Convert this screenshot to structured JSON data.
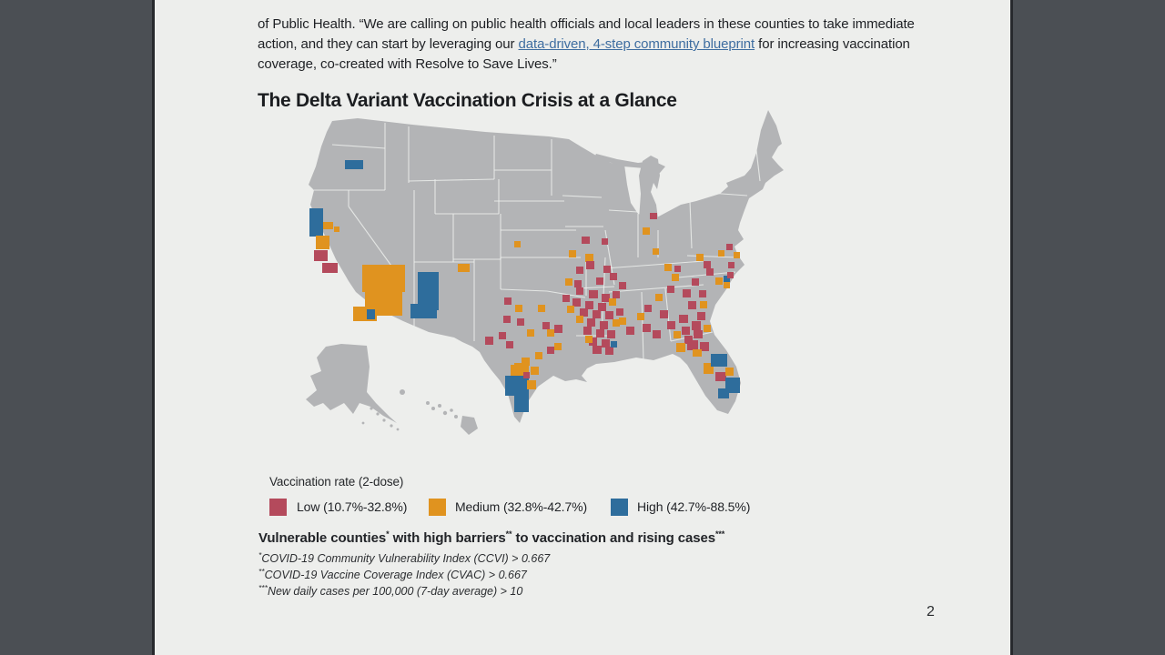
{
  "page": {
    "number": "2",
    "paragraph": {
      "before_link": "of Public Health. “We are calling on public health officials and local leaders in these counties to take immediate action, and they can start by leveraging our ",
      "link_text": "data-driven, 4-step community blueprint",
      "after_link": " for increasing vaccination coverage, co-created with Resolve to Save Lives.”"
    },
    "heading": "The Delta Variant Vaccination Crisis at a Glance"
  },
  "legend": {
    "title": "Vaccination rate (2-dose)"
  },
  "caption": {
    "title_parts": [
      "Vulnerable counties",
      "*",
      " with high barriers",
      "**",
      " to vaccination and rising cases",
      "***"
    ],
    "footnotes": [
      {
        "sup": "*",
        "text": "COVID-19 Community Vulnerability Index (CCVI) > 0.667"
      },
      {
        "sup": "**",
        "text": "COVID-19 Vaccine Coverage Index (CVAC) > 0.667"
      },
      {
        "sup": "***",
        "text": "New daily cases per 100,000 (7-day average) > 10"
      }
    ]
  },
  "chart_data": {
    "type": "choropleth-map",
    "title": "The Delta Variant Vaccination Crisis at a Glance",
    "region": "United States counties",
    "legend_title": "Vaccination rate (2-dose)",
    "legend_position": "bottom-left",
    "categories": [
      {
        "key": "L",
        "label": "Low (10.7%-32.8%)",
        "color": "#b44a5c"
      },
      {
        "key": "M",
        "label": "Medium (32.8%-42.7%)",
        "color": "#e0931f"
      },
      {
        "key": "H",
        "label": "High (42.7%-88.5%)",
        "color": "#2e6d9c"
      }
    ],
    "base_land_color": "#b3b4b6",
    "note": "Highlighted counties are vulnerable counties with high barriers to vaccination and rising cases; clusters concentrated in the South (TX, OK, AR, LA, MS, AL, GA, FL, Carolinas, MO) with scattered counties in CA, OR, AZ, NM, IN, OH",
    "counties": [
      [
        76,
        63,
        20,
        10,
        "H"
      ],
      [
        37,
        116,
        15,
        31,
        "H"
      ],
      [
        52,
        131,
        11,
        8,
        "M"
      ],
      [
        64,
        136,
        6,
        6,
        "M"
      ],
      [
        44,
        146,
        15,
        15,
        "M"
      ],
      [
        42,
        162,
        15,
        12,
        "L"
      ],
      [
        51,
        176,
        17,
        11,
        "L"
      ],
      [
        95,
        178,
        47,
        30,
        "M"
      ],
      [
        98,
        206,
        41,
        28,
        "M"
      ],
      [
        85,
        224,
        26,
        16,
        "M"
      ],
      [
        100,
        227,
        9,
        11,
        "H"
      ],
      [
        156,
        186,
        23,
        42,
        "H"
      ],
      [
        148,
        221,
        29,
        16,
        "H"
      ],
      [
        200,
        177,
        13,
        9,
        "M"
      ],
      [
        262,
        152,
        7,
        7,
        "M"
      ],
      [
        336,
        147,
        9,
        8,
        "L"
      ],
      [
        358,
        149,
        7,
        7,
        "L"
      ],
      [
        322,
        162,
        8,
        8,
        "M"
      ],
      [
        340,
        166,
        9,
        9,
        "M"
      ],
      [
        341,
        174,
        9,
        9,
        "L"
      ],
      [
        330,
        180,
        8,
        8,
        "L"
      ],
      [
        360,
        179,
        8,
        8,
        "L"
      ],
      [
        367,
        187,
        8,
        8,
        "L"
      ],
      [
        352,
        192,
        8,
        8,
        "L"
      ],
      [
        318,
        193,
        8,
        8,
        "M"
      ],
      [
        328,
        195,
        8,
        8,
        "L"
      ],
      [
        377,
        197,
        8,
        8,
        "L"
      ],
      [
        330,
        203,
        8,
        8,
        "L"
      ],
      [
        344,
        206,
        10,
        9,
        "L"
      ],
      [
        358,
        210,
        9,
        9,
        "L"
      ],
      [
        370,
        207,
        8,
        8,
        "L"
      ],
      [
        315,
        211,
        8,
        8,
        "L"
      ],
      [
        326,
        215,
        9,
        9,
        "L"
      ],
      [
        340,
        218,
        9,
        9,
        "L"
      ],
      [
        354,
        220,
        9,
        9,
        "L"
      ],
      [
        366,
        215,
        8,
        8,
        "M"
      ],
      [
        320,
        223,
        8,
        8,
        "M"
      ],
      [
        334,
        226,
        9,
        9,
        "L"
      ],
      [
        348,
        228,
        9,
        9,
        "L"
      ],
      [
        362,
        229,
        9,
        9,
        "L"
      ],
      [
        374,
        226,
        8,
        8,
        "L"
      ],
      [
        330,
        234,
        8,
        8,
        "M"
      ],
      [
        342,
        237,
        9,
        9,
        "L"
      ],
      [
        356,
        240,
        9,
        9,
        "L"
      ],
      [
        370,
        238,
        8,
        8,
        "M"
      ],
      [
        338,
        246,
        9,
        9,
        "L"
      ],
      [
        352,
        249,
        9,
        9,
        "L"
      ],
      [
        364,
        250,
        9,
        9,
        "L"
      ],
      [
        344,
        258,
        9,
        9,
        "L"
      ],
      [
        358,
        260,
        9,
        9,
        "L"
      ],
      [
        348,
        267,
        10,
        9,
        "L"
      ],
      [
        362,
        268,
        9,
        9,
        "L"
      ],
      [
        368,
        262,
        7,
        7,
        "H"
      ],
      [
        340,
        256,
        8,
        8,
        "M"
      ],
      [
        251,
        214,
        8,
        8,
        "L"
      ],
      [
        263,
        222,
        8,
        8,
        "M"
      ],
      [
        288,
        222,
        8,
        8,
        "M"
      ],
      [
        250,
        234,
        8,
        8,
        "L"
      ],
      [
        265,
        237,
        8,
        8,
        "L"
      ],
      [
        245,
        252,
        8,
        8,
        "L"
      ],
      [
        230,
        257,
        9,
        9,
        "L"
      ],
      [
        253,
        262,
        8,
        8,
        "L"
      ],
      [
        276,
        249,
        8,
        8,
        "M"
      ],
      [
        293,
        241,
        8,
        8,
        "L"
      ],
      [
        298,
        249,
        8,
        8,
        "M"
      ],
      [
        306,
        244,
        9,
        9,
        "L"
      ],
      [
        306,
        264,
        8,
        8,
        "M"
      ],
      [
        285,
        274,
        8,
        8,
        "M"
      ],
      [
        298,
        268,
        8,
        8,
        "L"
      ],
      [
        270,
        280,
        9,
        9,
        "M"
      ],
      [
        280,
        290,
        9,
        9,
        "M"
      ],
      [
        262,
        286,
        8,
        8,
        "M"
      ],
      [
        258,
        288,
        20,
        14,
        "M"
      ],
      [
        252,
        300,
        26,
        22,
        "H"
      ],
      [
        262,
        322,
        16,
        18,
        "H"
      ],
      [
        276,
        305,
        10,
        10,
        "M"
      ],
      [
        272,
        296,
        7,
        7,
        "L"
      ],
      [
        385,
        246,
        9,
        9,
        "L"
      ],
      [
        377,
        236,
        8,
        8,
        "M"
      ],
      [
        397,
        231,
        8,
        8,
        "M"
      ],
      [
        403,
        243,
        9,
        9,
        "L"
      ],
      [
        414,
        250,
        9,
        9,
        "L"
      ],
      [
        405,
        222,
        8,
        8,
        "L"
      ],
      [
        422,
        228,
        9,
        9,
        "L"
      ],
      [
        430,
        240,
        9,
        9,
        "L"
      ],
      [
        437,
        251,
        8,
        8,
        "M"
      ],
      [
        417,
        210,
        8,
        8,
        "M"
      ],
      [
        430,
        201,
        8,
        8,
        "L"
      ],
      [
        435,
        188,
        8,
        8,
        "M"
      ],
      [
        427,
        177,
        8,
        8,
        "M"
      ],
      [
        438,
        179,
        7,
        7,
        "L"
      ],
      [
        447,
        205,
        9,
        9,
        "L"
      ],
      [
        457,
        193,
        8,
        8,
        "L"
      ],
      [
        443,
        233,
        10,
        9,
        "L"
      ],
      [
        453,
        218,
        9,
        9,
        "L"
      ],
      [
        463,
        230,
        9,
        9,
        "L"
      ],
      [
        465,
        206,
        8,
        8,
        "L"
      ],
      [
        457,
        240,
        10,
        10,
        "L"
      ],
      [
        446,
        246,
        9,
        9,
        "L"
      ],
      [
        459,
        250,
        10,
        9,
        "L"
      ],
      [
        449,
        256,
        9,
        9,
        "L"
      ],
      [
        466,
        218,
        8,
        8,
        "M"
      ],
      [
        470,
        244,
        8,
        8,
        "M"
      ],
      [
        462,
        166,
        8,
        8,
        "M"
      ],
      [
        470,
        174,
        8,
        8,
        "L"
      ],
      [
        473,
        182,
        8,
        8,
        "L"
      ],
      [
        483,
        192,
        8,
        8,
        "M"
      ],
      [
        492,
        190,
        7,
        7,
        "H"
      ],
      [
        496,
        186,
        7,
        7,
        "L"
      ],
      [
        492,
        197,
        7,
        7,
        "M"
      ],
      [
        497,
        175,
        7,
        7,
        "L"
      ],
      [
        495,
        155,
        7,
        7,
        "L"
      ],
      [
        486,
        162,
        7,
        7,
        "M"
      ],
      [
        503,
        164,
        7,
        7,
        "M"
      ],
      [
        403,
        137,
        8,
        8,
        "M"
      ],
      [
        411,
        121,
        8,
        7,
        "L"
      ],
      [
        414,
        160,
        7,
        7,
        "M"
      ],
      [
        440,
        264,
        10,
        10,
        "M"
      ],
      [
        452,
        261,
        12,
        11,
        "L"
      ],
      [
        466,
        263,
        10,
        10,
        "L"
      ],
      [
        458,
        271,
        10,
        8,
        "M"
      ],
      [
        470,
        286,
        11,
        12,
        "M"
      ],
      [
        478,
        276,
        18,
        14,
        "H"
      ],
      [
        483,
        296,
        12,
        10,
        "L"
      ],
      [
        494,
        291,
        9,
        9,
        "M"
      ],
      [
        494,
        302,
        16,
        17,
        "H"
      ],
      [
        486,
        314,
        12,
        11,
        "H"
      ]
    ]
  }
}
